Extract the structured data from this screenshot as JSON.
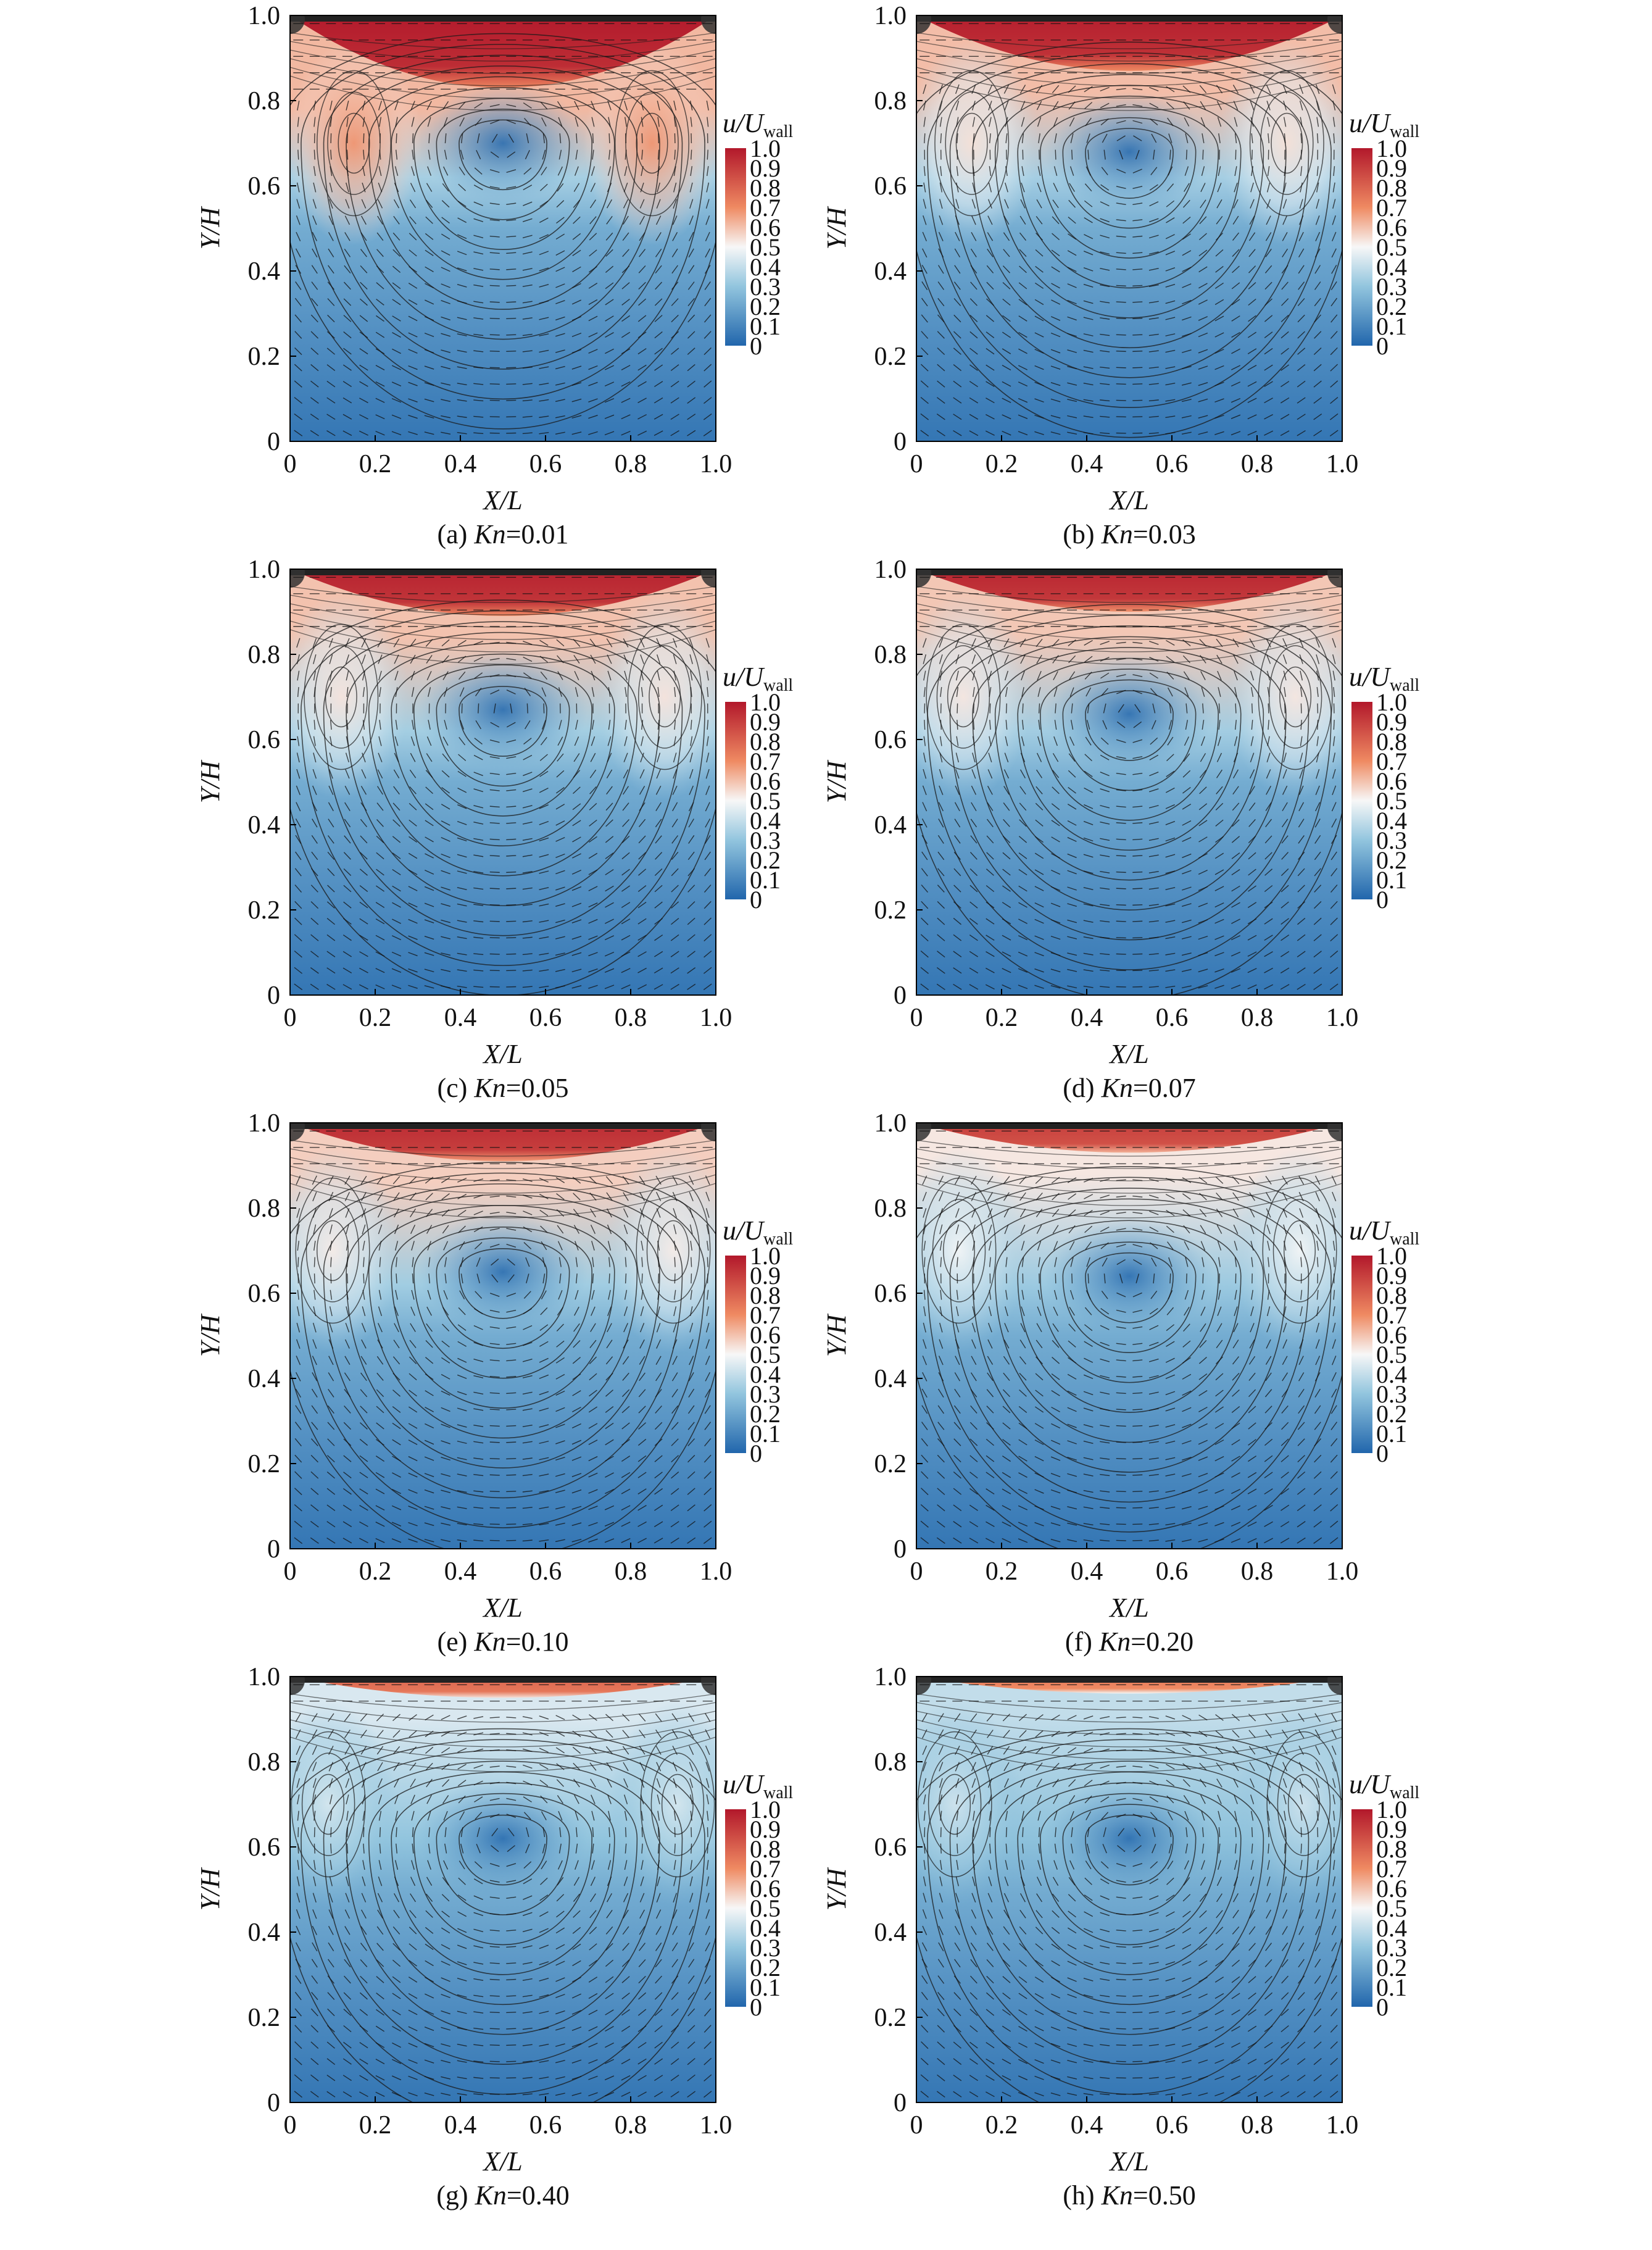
{
  "figure": {
    "colorbar": {
      "title_main": "u/U",
      "title_sub": "wall",
      "ticks": [
        "1.0",
        "0.9",
        "0.8",
        "0.7",
        "0.6",
        "0.5",
        "0.4",
        "0.3",
        "0.2",
        "0.1",
        "0"
      ],
      "colors": {
        "high": "#b2182b",
        "mid": "#f7f7f7",
        "low": "#2166ac"
      }
    }
  },
  "chart_data": [
    {
      "type": "heatmap",
      "caption_prefix": "(a) ",
      "caption_kn": "Kn",
      "caption_value": "=0.01",
      "kn": 0.01,
      "xlabel": "X/L",
      "ylabel": "Y/H",
      "xlim": [
        0,
        1
      ],
      "ylim": [
        0,
        1
      ],
      "xticks": [
        "0",
        "0.2",
        "0.4",
        "0.6",
        "0.8",
        "1.0"
      ],
      "yticks": [
        "0",
        "0.2",
        "0.4",
        "0.6",
        "0.8",
        "1.0"
      ],
      "main_vortex_center": [
        0.5,
        0.7
      ],
      "secondary_vortices": [
        [
          0.15,
          0.7
        ],
        [
          0.85,
          0.7
        ]
      ],
      "high_speed_region_bottom_y": 0.83
    },
    {
      "type": "heatmap",
      "caption_prefix": "(b) ",
      "caption_kn": "Kn",
      "caption_value": "=0.03",
      "kn": 0.03,
      "xlabel": "X/L",
      "ylabel": "Y/H",
      "xlim": [
        0,
        1
      ],
      "ylim": [
        0,
        1
      ],
      "xticks": [
        "0",
        "0.2",
        "0.4",
        "0.6",
        "0.8",
        "1.0"
      ],
      "yticks": [
        "0",
        "0.2",
        "0.4",
        "0.6",
        "0.8",
        "1.0"
      ],
      "main_vortex_center": [
        0.5,
        0.68
      ],
      "secondary_vortices": [
        [
          0.13,
          0.7
        ],
        [
          0.87,
          0.7
        ]
      ],
      "high_speed_region_bottom_y": 0.87
    },
    {
      "type": "heatmap",
      "caption_prefix": "(c) ",
      "caption_kn": "Kn",
      "caption_value": "=0.05",
      "kn": 0.05,
      "xlabel": "X/L",
      "ylabel": "Y/H",
      "xlim": [
        0,
        1
      ],
      "ylim": [
        0,
        1
      ],
      "xticks": [
        "0",
        "0.2",
        "0.4",
        "0.6",
        "0.8",
        "1.0"
      ],
      "yticks": [
        "0",
        "0.2",
        "0.4",
        "0.6",
        "0.8",
        "1.0"
      ],
      "main_vortex_center": [
        0.5,
        0.67
      ],
      "secondary_vortices": [
        [
          0.12,
          0.7
        ],
        [
          0.88,
          0.7
        ]
      ],
      "high_speed_region_bottom_y": 0.89
    },
    {
      "type": "heatmap",
      "caption_prefix": "(d) ",
      "caption_kn": "Kn",
      "caption_value": "=0.07",
      "kn": 0.07,
      "xlabel": "X/L",
      "ylabel": "Y/H",
      "xlim": [
        0,
        1
      ],
      "ylim": [
        0,
        1
      ],
      "xticks": [
        "0",
        "0.2",
        "0.4",
        "0.6",
        "0.8",
        "1.0"
      ],
      "yticks": [
        "0",
        "0.2",
        "0.4",
        "0.6",
        "0.8",
        "1.0"
      ],
      "main_vortex_center": [
        0.5,
        0.66
      ],
      "secondary_vortices": [
        [
          0.11,
          0.7
        ],
        [
          0.89,
          0.7
        ]
      ],
      "high_speed_region_bottom_y": 0.9
    },
    {
      "type": "heatmap",
      "caption_prefix": "(e) ",
      "caption_kn": "Kn",
      "caption_value": "=0.10",
      "kn": 0.1,
      "xlabel": "X/L",
      "ylabel": "Y/H",
      "xlim": [
        0,
        1
      ],
      "ylim": [
        0,
        1
      ],
      "xticks": [
        "0",
        "0.2",
        "0.4",
        "0.6",
        "0.8",
        "1.0"
      ],
      "yticks": [
        "0",
        "0.2",
        "0.4",
        "0.6",
        "0.8",
        "1.0"
      ],
      "main_vortex_center": [
        0.5,
        0.65
      ],
      "secondary_vortices": [
        [
          0.1,
          0.7
        ],
        [
          0.9,
          0.7
        ]
      ],
      "high_speed_region_bottom_y": 0.91
    },
    {
      "type": "heatmap",
      "caption_prefix": "(f) ",
      "caption_kn": "Kn",
      "caption_value": "=0.20",
      "kn": 0.2,
      "xlabel": "X/L",
      "ylabel": "Y/H",
      "xlim": [
        0,
        1
      ],
      "ylim": [
        0,
        1
      ],
      "xticks": [
        "0",
        "0.2",
        "0.4",
        "0.6",
        "0.8",
        "1.0"
      ],
      "yticks": [
        "0",
        "0.2",
        "0.4",
        "0.6",
        "0.8",
        "1.0"
      ],
      "main_vortex_center": [
        0.5,
        0.64
      ],
      "secondary_vortices": [
        [
          0.1,
          0.7
        ],
        [
          0.9,
          0.7
        ]
      ],
      "high_speed_region_bottom_y": 0.93
    },
    {
      "type": "heatmap",
      "caption_prefix": "(g) ",
      "caption_kn": "Kn",
      "caption_value": "=0.40",
      "kn": 0.4,
      "xlabel": "X/L",
      "ylabel": "Y/H",
      "xlim": [
        0,
        1
      ],
      "ylim": [
        0,
        1
      ],
      "xticks": [
        "0",
        "0.2",
        "0.4",
        "0.6",
        "0.8",
        "1.0"
      ],
      "yticks": [
        "0",
        "0.2",
        "0.4",
        "0.6",
        "0.8",
        "1.0"
      ],
      "main_vortex_center": [
        0.5,
        0.62
      ],
      "secondary_vortices": [
        [
          0.09,
          0.7
        ],
        [
          0.91,
          0.7
        ]
      ],
      "high_speed_region_bottom_y": 0.95
    },
    {
      "type": "heatmap",
      "caption_prefix": "(h) ",
      "caption_kn": "Kn",
      "caption_value": "=0.50",
      "kn": 0.5,
      "xlabel": "X/L",
      "ylabel": "Y/H",
      "xlim": [
        0,
        1
      ],
      "ylim": [
        0,
        1
      ],
      "xticks": [
        "0",
        "0.2",
        "0.4",
        "0.6",
        "0.8",
        "1.0"
      ],
      "yticks": [
        "0",
        "0.2",
        "0.4",
        "0.6",
        "0.8",
        "1.0"
      ],
      "main_vortex_center": [
        0.5,
        0.62
      ],
      "secondary_vortices": [
        [
          0.09,
          0.7
        ],
        [
          0.91,
          0.7
        ]
      ],
      "high_speed_region_bottom_y": 0.96
    }
  ]
}
